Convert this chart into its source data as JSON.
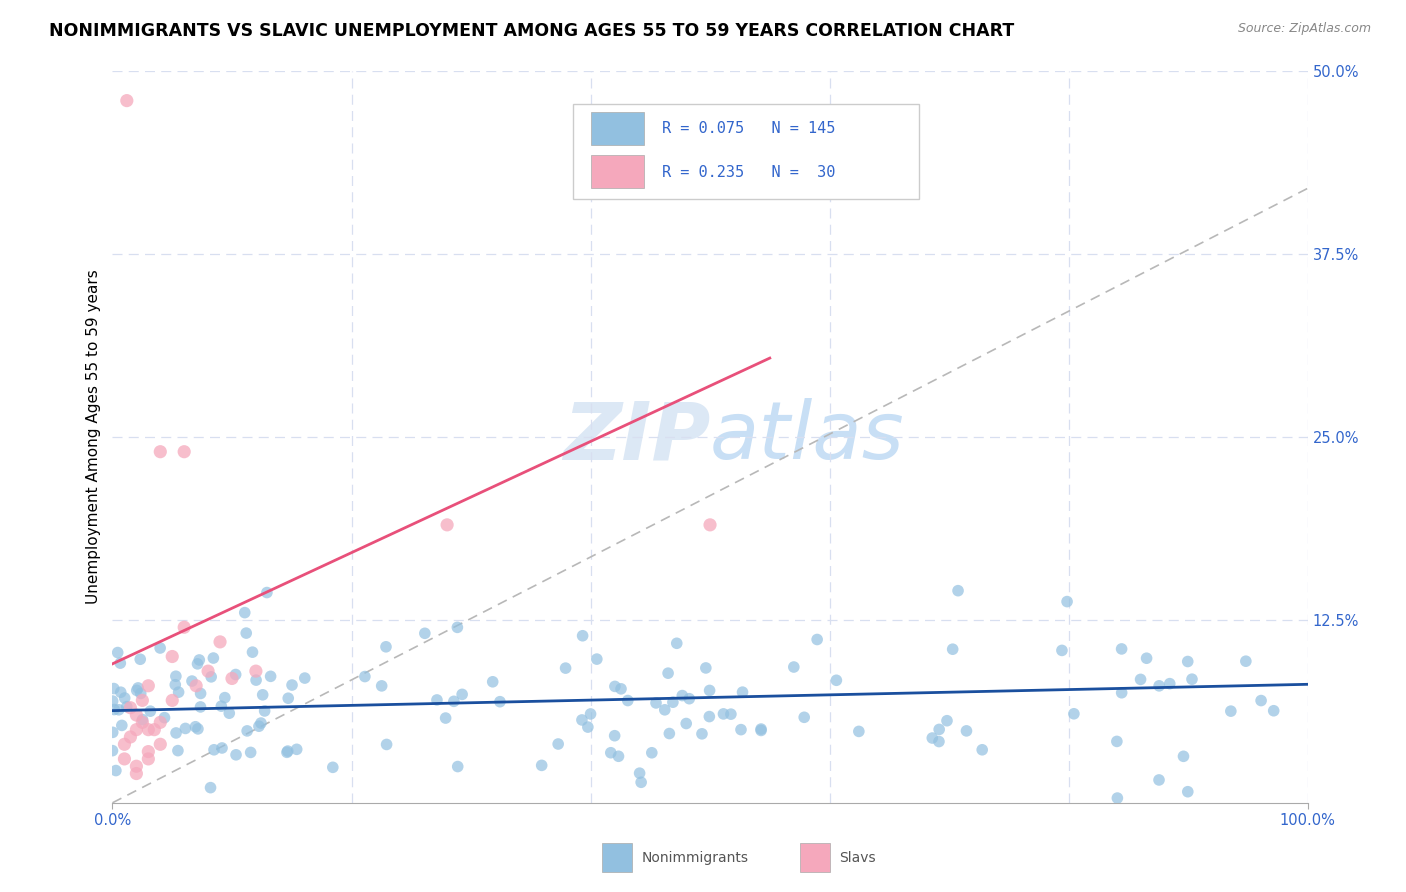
{
  "title": "NONIMMIGRANTS VS SLAVIC UNEMPLOYMENT AMONG AGES 55 TO 59 YEARS CORRELATION CHART",
  "source": "Source: ZipAtlas.com",
  "ylabel": "Unemployment Among Ages 55 to 59 years",
  "xlim": [
    0,
    1.0
  ],
  "ylim": [
    0,
    0.5
  ],
  "yticks_right": [
    0.0,
    0.125,
    0.25,
    0.375,
    0.5
  ],
  "ytick_right_labels": [
    "",
    "12.5%",
    "25.0%",
    "37.5%",
    "50.0%"
  ],
  "nonimmigrant_R": 0.075,
  "nonimmigrant_N": 145,
  "slavic_R": 0.235,
  "slavic_N": 30,
  "nonimmigrant_color": "#92c0e0",
  "slavic_color": "#f5a8bc",
  "trend_nonimmigrant_color": "#1a4f9e",
  "trend_slavic_color": "#e8507a",
  "trend_dashed_color": "#b8b8b8",
  "watermark_color": "#dce8f5",
  "background_color": "#ffffff",
  "grid_color": "#d8dff0",
  "title_fontsize": 12.5,
  "axis_label_fontsize": 11,
  "tick_fontsize": 10.5,
  "legend_text_color": "#3366cc",
  "source_color": "#888888",
  "nonimm_trend_slope": 0.018,
  "nonimm_trend_intercept": 0.063,
  "slavic_trend_slope": 0.38,
  "slavic_trend_intercept": 0.095,
  "dashed_slope": 0.42,
  "dashed_intercept": 0.0
}
